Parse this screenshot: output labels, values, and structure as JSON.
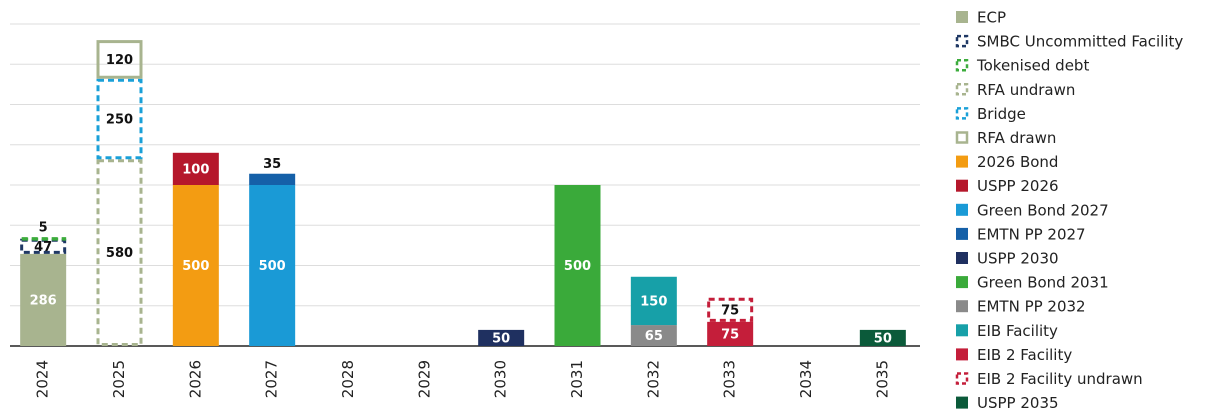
{
  "chart_data": {
    "type": "stacked_bar",
    "categories": [
      "2024",
      "2025",
      "2026",
      "2027",
      "2028",
      "2029",
      "2030",
      "2031",
      "2032",
      "2033",
      "2034",
      "2035"
    ],
    "ylim": [
      0,
      1000
    ],
    "yticks": [
      0,
      125,
      250,
      375,
      500,
      625,
      750,
      875,
      1000
    ],
    "grid": true,
    "series": [
      {
        "name": "ECP",
        "color": "#a8b48f",
        "style": "solid",
        "values": [
          286,
          null,
          null,
          null,
          null,
          null,
          null,
          null,
          null,
          null,
          null,
          null
        ]
      },
      {
        "name": "SMBC Uncommitted Facility",
        "color": "#1f3864",
        "style": "dashed",
        "values": [
          47,
          null,
          null,
          null,
          null,
          null,
          null,
          null,
          null,
          null,
          null,
          null
        ]
      },
      {
        "name": "Tokenised debt",
        "color": "#3cac3c",
        "style": "dashed",
        "values": [
          5,
          null,
          null,
          null,
          null,
          null,
          null,
          null,
          null,
          null,
          null,
          null
        ]
      },
      {
        "name": "RFA undrawn",
        "color": "#a8b48f",
        "style": "dashed",
        "values": [
          null,
          580,
          null,
          null,
          null,
          null,
          null,
          null,
          null,
          null,
          null,
          null
        ]
      },
      {
        "name": "Bridge",
        "color": "#1aa0d8",
        "style": "dashed",
        "values": [
          null,
          250,
          null,
          null,
          null,
          null,
          null,
          null,
          null,
          null,
          null,
          null
        ]
      },
      {
        "name": "RFA drawn",
        "color": "#a8b48f",
        "style": "outline",
        "values": [
          null,
          120,
          null,
          null,
          null,
          null,
          null,
          null,
          null,
          null,
          null,
          null
        ]
      },
      {
        "name": "2026 Bond",
        "color": "#f39c12",
        "style": "solid",
        "values": [
          null,
          null,
          500,
          null,
          null,
          null,
          null,
          null,
          null,
          null,
          null,
          null
        ]
      },
      {
        "name": "USPP 2026",
        "color": "#b5172b",
        "style": "solid",
        "values": [
          null,
          null,
          100,
          null,
          null,
          null,
          null,
          null,
          null,
          null,
          null,
          null
        ]
      },
      {
        "name": "Green Bond 2027",
        "color": "#1a9ad6",
        "style": "solid",
        "values": [
          null,
          null,
          null,
          500,
          null,
          null,
          null,
          null,
          null,
          null,
          null,
          null
        ]
      },
      {
        "name": "EMTN PP 2027",
        "color": "#1560a8",
        "style": "solid",
        "values": [
          null,
          null,
          null,
          35,
          null,
          null,
          null,
          null,
          null,
          null,
          null,
          null
        ]
      },
      {
        "name": "USPP 2030",
        "color": "#1f3060",
        "style": "solid",
        "values": [
          null,
          null,
          null,
          null,
          null,
          null,
          50,
          null,
          null,
          null,
          null,
          null
        ]
      },
      {
        "name": "Green Bond 2031",
        "color": "#3aaa3a",
        "style": "solid",
        "values": [
          null,
          null,
          null,
          null,
          null,
          null,
          null,
          500,
          null,
          null,
          null,
          null
        ]
      },
      {
        "name": "EMTN PP 2032",
        "color": "#8a8a8a",
        "style": "solid",
        "values": [
          null,
          null,
          null,
          null,
          null,
          null,
          null,
          null,
          65,
          null,
          null,
          null
        ]
      },
      {
        "name": "EIB Facility",
        "color": "#17a0a8",
        "style": "solid",
        "values": [
          null,
          null,
          null,
          null,
          null,
          null,
          null,
          null,
          150,
          null,
          null,
          null
        ]
      },
      {
        "name": "EIB 2 Facility",
        "color": "#c41e3a",
        "style": "solid",
        "values": [
          null,
          null,
          null,
          null,
          null,
          null,
          null,
          null,
          null,
          75,
          null,
          null
        ]
      },
      {
        "name": "EIB 2 Facility undrawn",
        "color": "#c41e3a",
        "style": "dashed",
        "values": [
          null,
          null,
          null,
          null,
          null,
          null,
          null,
          null,
          null,
          75,
          null,
          null
        ]
      },
      {
        "name": "USPP 2035",
        "color": "#0b5a3a",
        "style": "solid",
        "values": [
          null,
          null,
          null,
          null,
          null,
          null,
          null,
          null,
          null,
          null,
          null,
          50
        ]
      }
    ]
  }
}
